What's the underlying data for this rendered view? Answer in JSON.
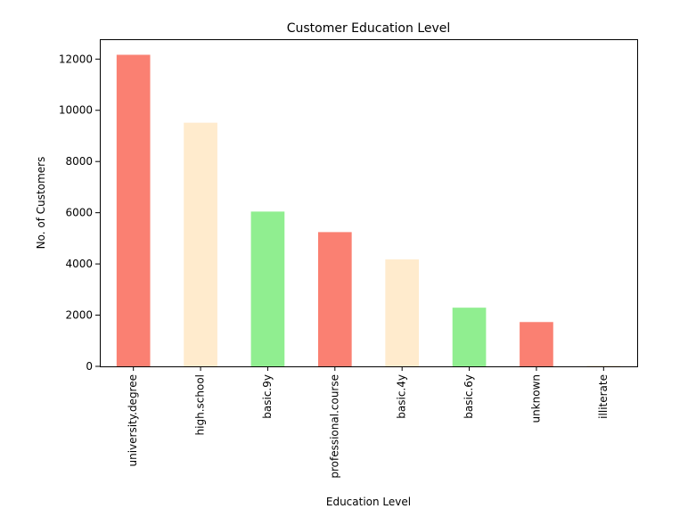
{
  "chart_data": {
    "type": "bar",
    "title": "Customer Education Level",
    "xlabel": "Education Level",
    "ylabel": "No. of Customers",
    "categories": [
      "university.degree",
      "high.school",
      "basic.9y",
      "professional.course",
      "basic.4y",
      "basic.6y",
      "unknown",
      "illiterate"
    ],
    "values": [
      12168,
      9515,
      6045,
      5243,
      4176,
      2292,
      1731,
      18
    ],
    "ylim": [
      0,
      12776
    ],
    "yticks": [
      0,
      2000,
      4000,
      6000,
      8000,
      10000,
      12000
    ],
    "colors": [
      "#fa8072",
      "#ffebcd",
      "#90ee90",
      "#fa8072",
      "#ffebcd",
      "#90ee90",
      "#fa8072",
      "#ffebcd"
    ],
    "grid": false,
    "legend": "none"
  }
}
